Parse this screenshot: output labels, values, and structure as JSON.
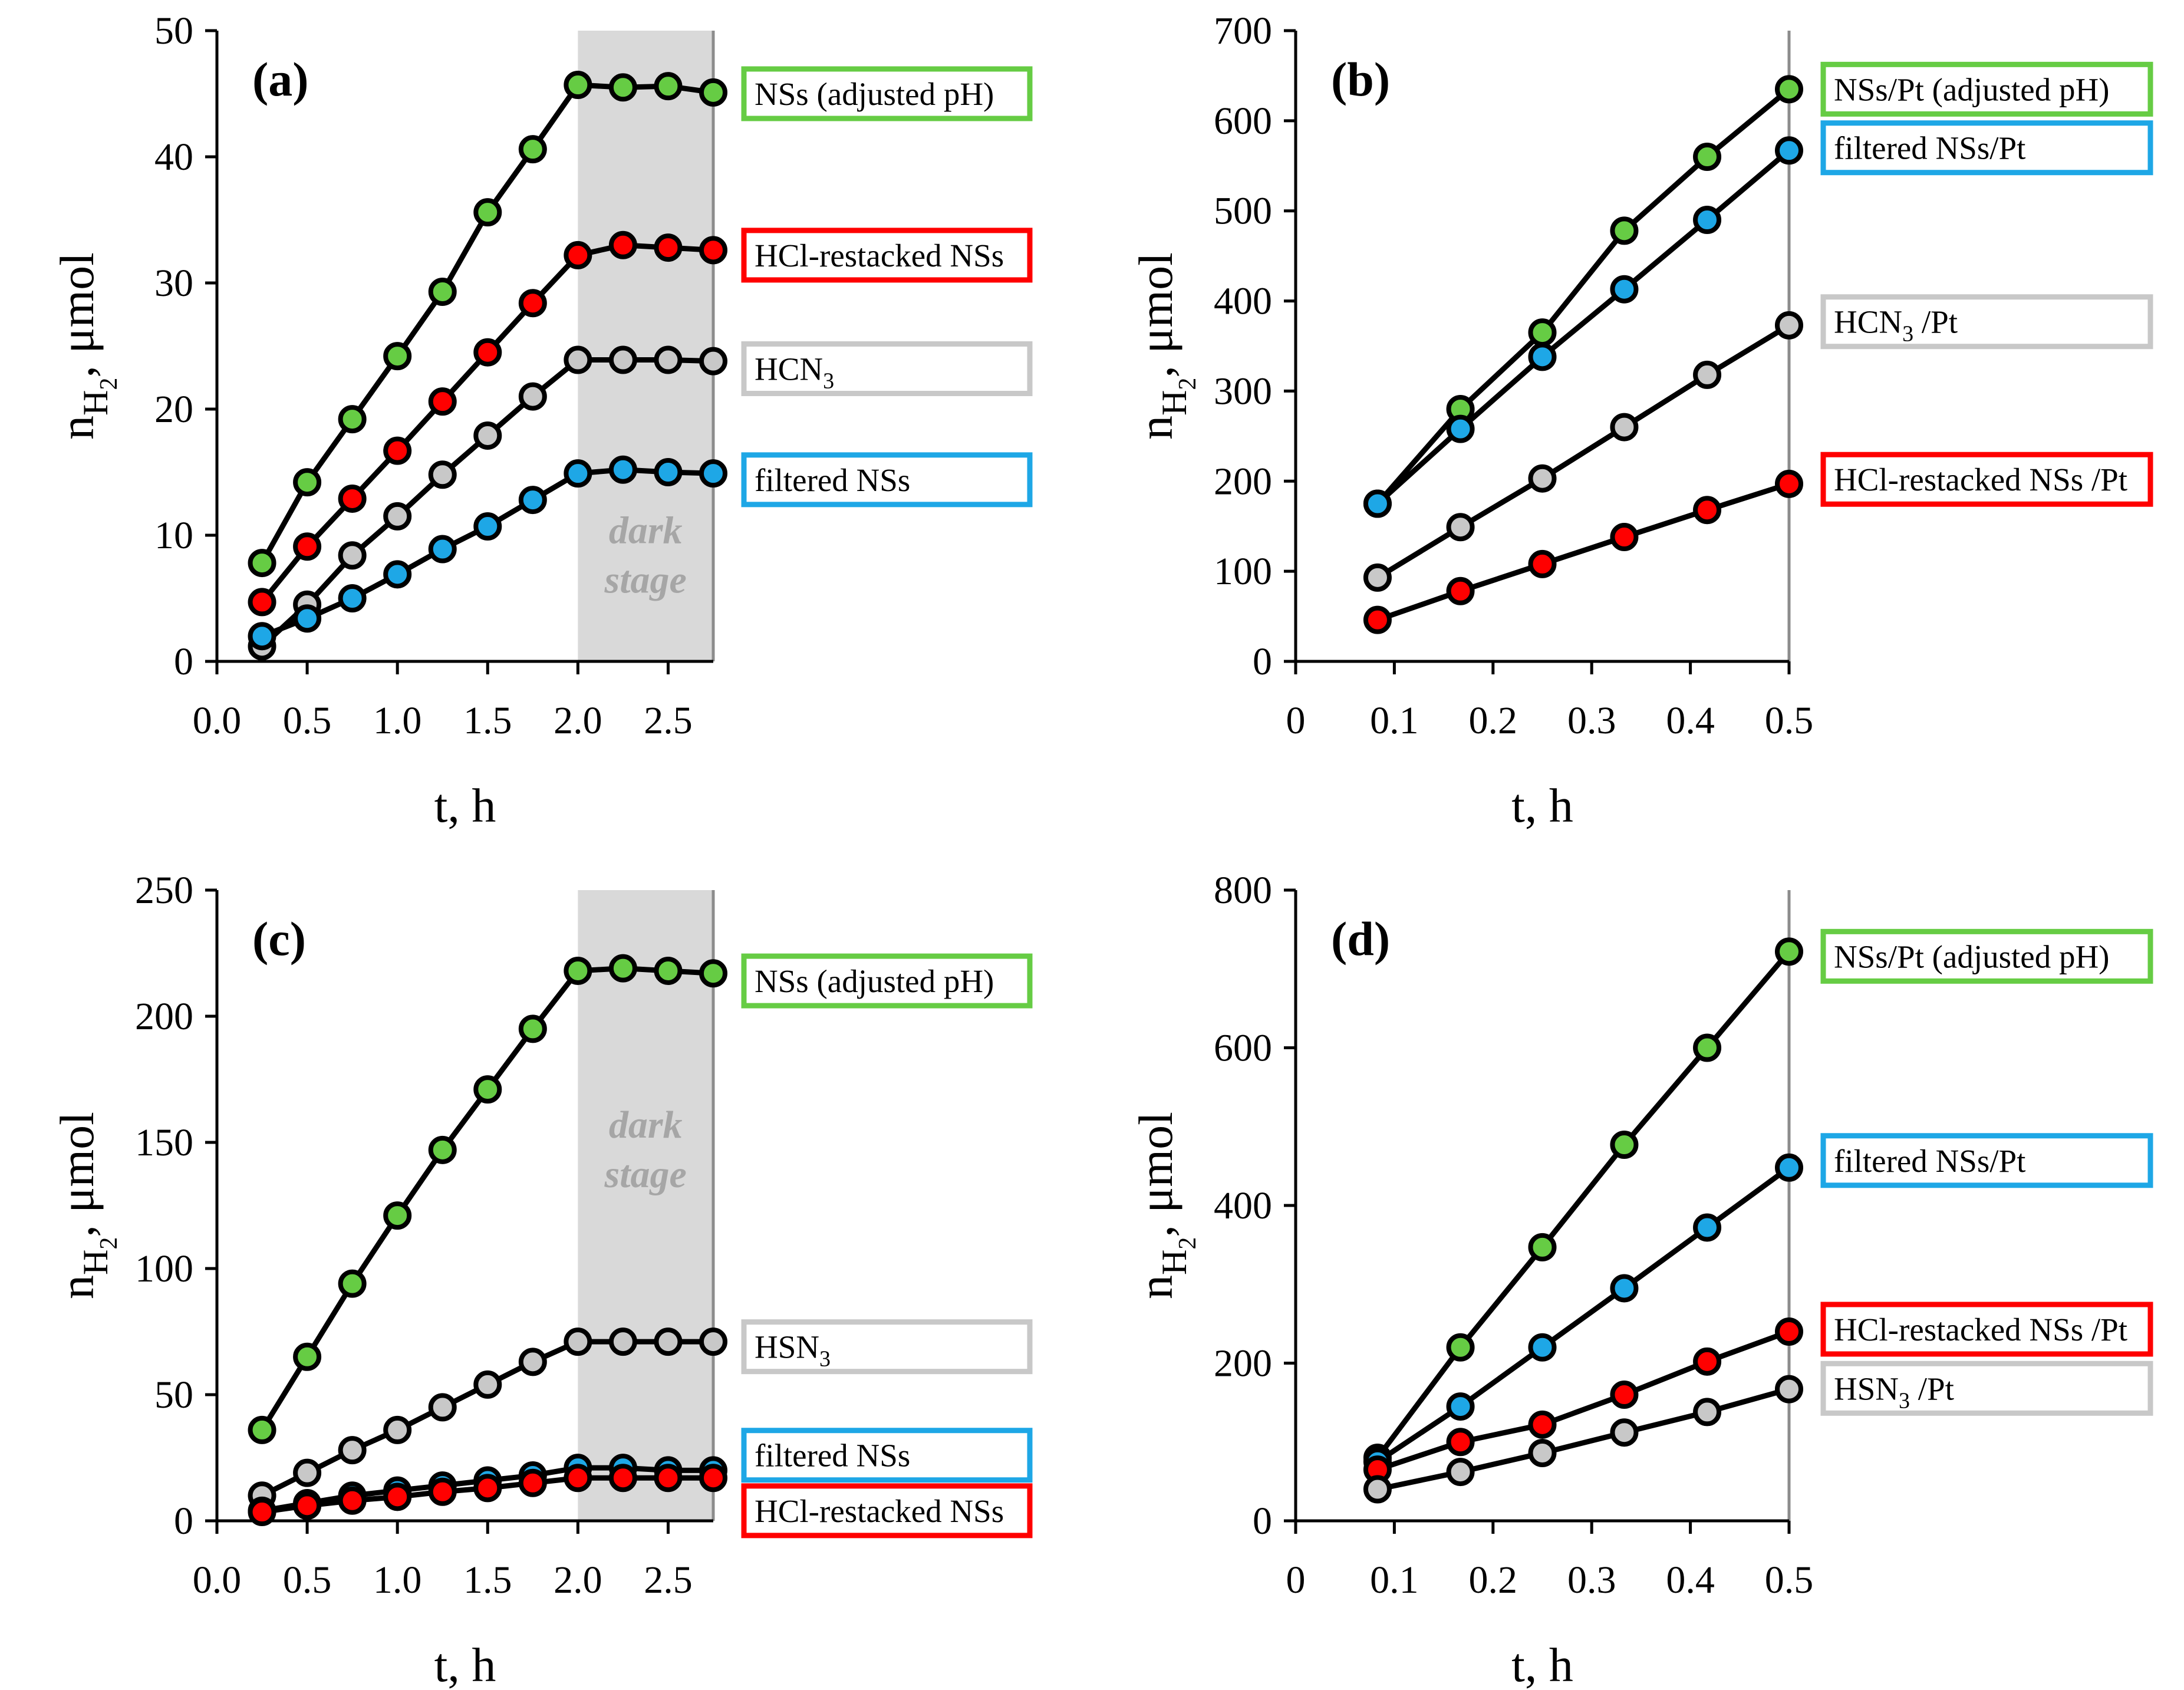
{
  "chart_data": [
    {
      "type": "line",
      "panel_label": "(a)",
      "xlabel": "t, h",
      "ylabel": {
        "base": "n",
        "sub_main": "H",
        "sub_index": "2",
        "rest": ", μmol"
      },
      "xlim": [
        0,
        2.75
      ],
      "ylim": [
        0,
        50
      ],
      "xticks": [
        0.0,
        0.5,
        1.0,
        1.5,
        2.0,
        2.5
      ],
      "xtick_labels": [
        "0.0",
        "0.5",
        "1.0",
        "1.5",
        "2.0",
        "2.5"
      ],
      "yticks": [
        0,
        10,
        20,
        30,
        40,
        50
      ],
      "ytick_labels": [
        "0",
        "10",
        "20",
        "30",
        "40",
        "50"
      ],
      "dark_region": {
        "from": 2.0,
        "to": 2.75,
        "label_line1": "dark",
        "label_line2": "stage"
      },
      "series": [
        {
          "name": "NSs (adjusted pH)",
          "name_parts": [
            {
              "t": "NSs (adjusted pH)"
            }
          ],
          "color": "#66cc44",
          "x": [
            0.25,
            0.5,
            0.75,
            1.0,
            1.25,
            1.5,
            1.75,
            2.0,
            2.25,
            2.5,
            2.75
          ],
          "y": [
            7.8,
            14.2,
            19.2,
            24.2,
            29.3,
            35.6,
            40.6,
            45.7,
            45.5,
            45.6,
            45.1
          ],
          "legend_y": 45.0
        },
        {
          "name": "HCl-restacked NSs",
          "name_parts": [
            {
              "t": "HCl-restacked NSs"
            }
          ],
          "color": "#ff0000",
          "x": [
            0.25,
            0.5,
            0.75,
            1.0,
            1.25,
            1.5,
            1.75,
            2.0,
            2.25,
            2.5,
            2.75
          ],
          "y": [
            4.7,
            9.1,
            12.9,
            16.7,
            20.6,
            24.5,
            28.4,
            32.2,
            33.0,
            32.8,
            32.6
          ],
          "legend_y": 32.2
        },
        {
          "name": "HCN3",
          "name_parts": [
            {
              "t": "HCN"
            },
            {
              "t": "3",
              "sub": true
            }
          ],
          "color": "#c8c8c8",
          "x": [
            0.25,
            0.5,
            0.75,
            1.0,
            1.25,
            1.5,
            1.75,
            2.0,
            2.25,
            2.5,
            2.75
          ],
          "y": [
            1.2,
            4.5,
            8.4,
            11.5,
            14.8,
            17.9,
            21.0,
            23.9,
            23.9,
            23.9,
            23.8
          ],
          "legend_y": 23.2
        },
        {
          "name": "filtered NSs",
          "name_parts": [
            {
              "t": "filtered NSs"
            }
          ],
          "color": "#1ea7e6",
          "x": [
            0.25,
            0.5,
            0.75,
            1.0,
            1.25,
            1.5,
            1.75,
            2.0,
            2.25,
            2.5,
            2.75
          ],
          "y": [
            2.0,
            3.4,
            5.0,
            6.9,
            8.9,
            10.7,
            12.8,
            14.9,
            15.2,
            15.0,
            14.9
          ],
          "legend_y": 14.4
        }
      ]
    },
    {
      "type": "line",
      "panel_label": "(b)",
      "xlabel": "t, h",
      "ylabel": {
        "base": "n",
        "sub_main": "H",
        "sub_index": "2",
        "rest": ", μmol"
      },
      "xlim": [
        0,
        0.5
      ],
      "ylim": [
        0,
        700
      ],
      "xticks": [
        0,
        0.1,
        0.2,
        0.3,
        0.4,
        0.5
      ],
      "xtick_labels": [
        "0",
        "0.1",
        "0.2",
        "0.3",
        "0.4",
        "0.5"
      ],
      "yticks": [
        0,
        100,
        200,
        300,
        400,
        500,
        600,
        700
      ],
      "ytick_labels": [
        "0",
        "100",
        "200",
        "300",
        "400",
        "500",
        "600",
        "700"
      ],
      "series": [
        {
          "name": "NSs/Pt (adjusted pH)",
          "name_parts": [
            {
              "t": "NSs/Pt (adjusted pH)"
            }
          ],
          "color": "#66cc44",
          "x": [
            0.083,
            0.167,
            0.25,
            0.333,
            0.417,
            0.5
          ],
          "y": [
            175,
            280,
            365,
            478,
            560,
            635
          ],
          "legend_y": 635
        },
        {
          "name": "filtered NSs/Pt",
          "name_parts": [
            {
              "t": "filtered NSs/Pt"
            }
          ],
          "color": "#1ea7e6",
          "x": [
            0.083,
            0.167,
            0.25,
            0.333,
            0.417,
            0.5
          ],
          "y": [
            175,
            258,
            338,
            413,
            490,
            567
          ],
          "legend_y": 570
        },
        {
          "name": "HCN3 /Pt",
          "name_parts": [
            {
              "t": "HCN"
            },
            {
              "t": "3",
              "sub": true
            },
            {
              "t": " /Pt"
            }
          ],
          "color": "#c8c8c8",
          "x": [
            0.083,
            0.167,
            0.25,
            0.333,
            0.417,
            0.5
          ],
          "y": [
            93,
            149,
            203,
            260,
            318,
            373
          ],
          "legend_y": 377
        },
        {
          "name": "HCl-restacked NSs /Pt",
          "name_parts": [
            {
              "t": "HCl-restacked NSs /Pt"
            }
          ],
          "color": "#ff0000",
          "x": [
            0.083,
            0.167,
            0.25,
            0.333,
            0.417,
            0.5
          ],
          "y": [
            46,
            78,
            108,
            138,
            168,
            197
          ],
          "legend_y": 202
        }
      ]
    },
    {
      "type": "line",
      "panel_label": "(c)",
      "xlabel": "t, h",
      "ylabel": {
        "base": "n",
        "sub_main": "H",
        "sub_index": "2",
        "rest": ", μmol"
      },
      "xlim": [
        0,
        2.75
      ],
      "ylim": [
        0,
        250
      ],
      "xticks": [
        0.0,
        0.5,
        1.0,
        1.5,
        2.0,
        2.5
      ],
      "xtick_labels": [
        "0.0",
        "0.5",
        "1.0",
        "1.5",
        "2.0",
        "2.5"
      ],
      "yticks": [
        0,
        50,
        100,
        150,
        200,
        250
      ],
      "ytick_labels": [
        "0",
        "50",
        "100",
        "150",
        "200",
        "250"
      ],
      "dark_region": {
        "from": 2.0,
        "to": 2.75,
        "label_line1": "dark",
        "label_line2": "stage"
      },
      "series": [
        {
          "name": "NSs (adjusted pH)",
          "name_parts": [
            {
              "t": "NSs (adjusted pH)"
            }
          ],
          "color": "#66cc44",
          "x": [
            0.25,
            0.5,
            0.75,
            1.0,
            1.25,
            1.5,
            1.75,
            2.0,
            2.25,
            2.5,
            2.75
          ],
          "y": [
            36,
            65,
            94,
            121,
            147,
            171,
            195,
            218,
            219,
            218,
            217
          ],
          "legend_y": 214
        },
        {
          "name": "HSN3",
          "name_parts": [
            {
              "t": "HSN"
            },
            {
              "t": "3",
              "sub": true
            }
          ],
          "color": "#c8c8c8",
          "x": [
            0.25,
            0.5,
            0.75,
            1.0,
            1.25,
            1.5,
            1.75,
            2.0,
            2.25,
            2.5,
            2.75
          ],
          "y": [
            10,
            19,
            28,
            36,
            45,
            54,
            63,
            71,
            71,
            71,
            71
          ],
          "legend_y": 69
        },
        {
          "name": "filtered NSs",
          "name_parts": [
            {
              "t": "filtered NSs"
            }
          ],
          "color": "#1ea7e6",
          "x": [
            0.25,
            0.5,
            0.75,
            1.0,
            1.25,
            1.5,
            1.75,
            2.0,
            2.25,
            2.5,
            2.75
          ],
          "y": [
            4,
            7,
            10,
            12,
            14,
            16,
            18,
            21,
            21,
            20,
            20
          ],
          "legend_y": 26
        },
        {
          "name": "HCl-restacked NSs",
          "name_parts": [
            {
              "t": "HCl-restacked NSs"
            }
          ],
          "color": "#ff0000",
          "x": [
            0.25,
            0.5,
            0.75,
            1.0,
            1.25,
            1.5,
            1.75,
            2.0,
            2.25,
            2.5,
            2.75
          ],
          "y": [
            3.5,
            6,
            8,
            9.5,
            11.5,
            13,
            15,
            17,
            17,
            17,
            17
          ],
          "legend_y": 4
        }
      ]
    },
    {
      "type": "line",
      "panel_label": "(d)",
      "xlabel": "t, h",
      "ylabel": {
        "base": "n",
        "sub_main": "H",
        "sub_index": "2",
        "rest": ", μmol"
      },
      "xlim": [
        0,
        0.5
      ],
      "ylim": [
        0,
        800
      ],
      "xticks": [
        0,
        0.1,
        0.2,
        0.3,
        0.4,
        0.5
      ],
      "xtick_labels": [
        "0",
        "0.1",
        "0.2",
        "0.3",
        "0.4",
        "0.5"
      ],
      "yticks": [
        0,
        200,
        400,
        600,
        800
      ],
      "ytick_labels": [
        "0",
        "200",
        "400",
        "600",
        "800"
      ],
      "series": [
        {
          "name": "NSs/Pt (adjusted pH)",
          "name_parts": [
            {
              "t": "NSs/Pt (adjusted pH)"
            }
          ],
          "color": "#66cc44",
          "x": [
            0.083,
            0.167,
            0.25,
            0.333,
            0.417,
            0.5
          ],
          "y": [
            80,
            220,
            347,
            477,
            600,
            722
          ],
          "legend_y": 716
        },
        {
          "name": "filtered NSs/Pt",
          "name_parts": [
            {
              "t": "filtered NSs/Pt"
            }
          ],
          "color": "#1ea7e6",
          "x": [
            0.083,
            0.167,
            0.25,
            0.333,
            0.417,
            0.5
          ],
          "y": [
            75,
            145,
            220,
            295,
            372,
            448
          ],
          "legend_y": 457
        },
        {
          "name": "HCl-restacked NSs /Pt",
          "name_parts": [
            {
              "t": "HCl-restacked NSs /Pt"
            }
          ],
          "color": "#ff0000",
          "x": [
            0.083,
            0.167,
            0.25,
            0.333,
            0.417,
            0.5
          ],
          "y": [
            65,
            100,
            122,
            160,
            202,
            240
          ],
          "legend_y": 243
        },
        {
          "name": "HSN3 /Pt",
          "name_parts": [
            {
              "t": "HSN"
            },
            {
              "t": "3",
              "sub": true
            },
            {
              "t": " /Pt"
            }
          ],
          "color": "#c8c8c8",
          "x": [
            0.083,
            0.167,
            0.25,
            0.333,
            0.417,
            0.5
          ],
          "y": [
            40,
            62,
            86,
            112,
            138,
            167
          ],
          "legend_y": 168
        }
      ]
    }
  ]
}
